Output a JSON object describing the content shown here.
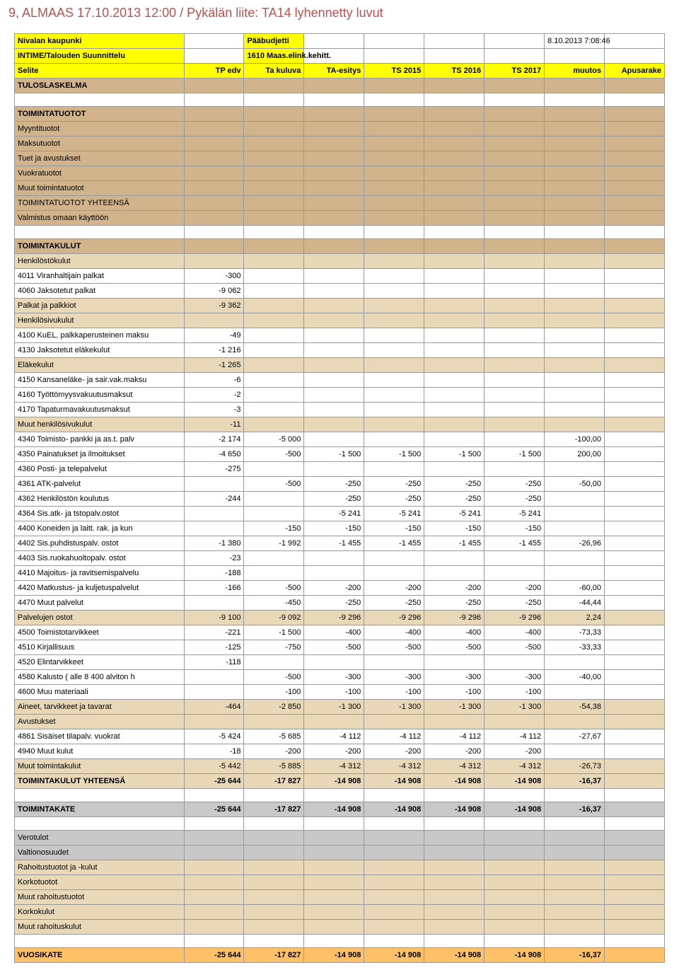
{
  "page_title": "9, ALMAAS 17.10.2013 12:00 / Pykälän liite: TA14 lyhennetty luvut",
  "header": {
    "org": "Nivalan kaupunki",
    "budget": "Pääbudjetti",
    "timestamp": "8.10.2013 7:08:46",
    "unit": "INTIME/Talouden Suunnittelu",
    "context": "1610 Maas.elink.kehitt."
  },
  "cols": [
    "Selite",
    "TP edv",
    "Ta kuluva",
    "TA-esitys",
    "TS 2015",
    "TS 2016",
    "TS 2017",
    "muutos",
    "Apusarake"
  ],
  "section_labels": {
    "tuloslaskelma": "TULOSLASKELMA",
    "toimintatuotot": "TOIMINTATUOTOT",
    "toimintakulut": "TOIMINTAKULUT",
    "vuosikate": "VUOSIKATE"
  },
  "tuotot_rows": [
    "Myyntituotot",
    "Maksutuotot",
    "Tuet ja avustukset",
    "Vuokratuotot",
    "Muut toimintatuotot",
    "TOIMINTATUOTOT YHTEENSÄ",
    "Valmistus omaan käyttöön"
  ],
  "kulut_rows": [
    {
      "l": "Henkilöstökulut",
      "cls": "row-tan"
    },
    {
      "l": "4011 Viranhaltijain palkat",
      "v": [
        "-300",
        "",
        "",
        "",
        "",
        "",
        "",
        ""
      ]
    },
    {
      "l": "4060 Jaksotetut palkat",
      "v": [
        "-9 062",
        "",
        "",
        "",
        "",
        "",
        "",
        ""
      ]
    },
    {
      "l": "Palkat ja palkkiot",
      "v": [
        "-9 362",
        "",
        "",
        "",
        "",
        "",
        "",
        ""
      ],
      "cls": "row-tan"
    },
    {
      "l": "Henkilösivukulut",
      "cls": "row-tan"
    },
    {
      "l": "4100 KuEL, palkkaperusteinen maksu",
      "v": [
        "-49",
        "",
        "",
        "",
        "",
        "",
        "",
        ""
      ]
    },
    {
      "l": "4130 Jaksotetut eläkekulut",
      "v": [
        "-1 216",
        "",
        "",
        "",
        "",
        "",
        "",
        ""
      ]
    },
    {
      "l": "Eläkekulut",
      "v": [
        "-1 265",
        "",
        "",
        "",
        "",
        "",
        "",
        ""
      ],
      "cls": "row-tan"
    },
    {
      "l": "4150 Kansaneläke- ja sair.vak.maksu",
      "v": [
        "-6",
        "",
        "",
        "",
        "",
        "",
        "",
        ""
      ]
    },
    {
      "l": "4160 Työttömyysvakuutusmaksut",
      "v": [
        "-2",
        "",
        "",
        "",
        "",
        "",
        "",
        ""
      ]
    },
    {
      "l": "4170 Tapaturmavakuutusmaksut",
      "v": [
        "-3",
        "",
        "",
        "",
        "",
        "",
        "",
        ""
      ]
    },
    {
      "l": "Muut henkilösivukulut",
      "v": [
        "-11",
        "",
        "",
        "",
        "",
        "",
        "",
        ""
      ],
      "cls": "row-tan"
    },
    {
      "l": "4340 Toimisto- pankki ja as.t. palv",
      "v": [
        "-2 174",
        "-5 000",
        "",
        "",
        "",
        "",
        "-100,00",
        ""
      ]
    },
    {
      "l": "4350 Painatukset ja ilmoitukset",
      "v": [
        "-4 650",
        "-500",
        "-1 500",
        "-1 500",
        "-1 500",
        "-1 500",
        "200,00",
        ""
      ]
    },
    {
      "l": "4360 Posti- ja telepalvelut",
      "v": [
        "-275",
        "",
        "",
        "",
        "",
        "",
        "",
        ""
      ]
    },
    {
      "l": "4361 ATK-palvelut",
      "v": [
        "",
        "-500",
        "-250",
        "-250",
        "-250",
        "-250",
        "-50,00",
        ""
      ]
    },
    {
      "l": "4362 Henkilöstön koulutus",
      "v": [
        "-244",
        "",
        "-250",
        "-250",
        "-250",
        "-250",
        "",
        ""
      ]
    },
    {
      "l": "4364 Sis.atk- ja tstopalv.ostot",
      "v": [
        "",
        "",
        "-5 241",
        "-5 241",
        "-5 241",
        "-5 241",
        "",
        ""
      ]
    },
    {
      "l": "4400 Koneiden ja laitt. rak. ja kun",
      "v": [
        "",
        "-150",
        "-150",
        "-150",
        "-150",
        "-150",
        "",
        ""
      ]
    },
    {
      "l": "4402 Sis.puhdistuspalv. ostot",
      "v": [
        "-1 380",
        "-1 992",
        "-1 455",
        "-1 455",
        "-1 455",
        "-1 455",
        "-26,96",
        ""
      ]
    },
    {
      "l": "4403 Sis.ruokahuoltopalv. ostot",
      "v": [
        "-23",
        "",
        "",
        "",
        "",
        "",
        "",
        ""
      ]
    },
    {
      "l": "4410 Majoitus- ja ravitsemispalvelu",
      "v": [
        "-188",
        "",
        "",
        "",
        "",
        "",
        "",
        ""
      ]
    },
    {
      "l": "4420 Matkustus- ja kuljetuspalvelut",
      "v": [
        "-166",
        "-500",
        "-200",
        "-200",
        "-200",
        "-200",
        "-60,00",
        ""
      ]
    },
    {
      "l": "4470 Muut palvelut",
      "v": [
        "",
        "-450",
        "-250",
        "-250",
        "-250",
        "-250",
        "-44,44",
        ""
      ]
    },
    {
      "l": "Palvelujen ostot",
      "v": [
        "-9 100",
        "-9 092",
        "-9 296",
        "-9 296",
        "-9 296",
        "-9 296",
        "2,24",
        ""
      ],
      "cls": "row-tan"
    },
    {
      "l": "4500 Toimistotarvikkeet",
      "v": [
        "-221",
        "-1 500",
        "-400",
        "-400",
        "-400",
        "-400",
        "-73,33",
        ""
      ]
    },
    {
      "l": "4510 Kirjallisuus",
      "v": [
        "-125",
        "-750",
        "-500",
        "-500",
        "-500",
        "-500",
        "-33,33",
        ""
      ]
    },
    {
      "l": "4520 Elintarvikkeet",
      "v": [
        "-118",
        "",
        "",
        "",
        "",
        "",
        "",
        ""
      ]
    },
    {
      "l": "4580 Kalusto ( alle 8 400 alviton h",
      "v": [
        "",
        "-500",
        "-300",
        "-300",
        "-300",
        "-300",
        "-40,00",
        ""
      ]
    },
    {
      "l": "4600 Muu materiaali",
      "v": [
        "",
        "-100",
        "-100",
        "-100",
        "-100",
        "-100",
        "",
        ""
      ]
    },
    {
      "l": "Aineet, tarvikkeet ja tavarat",
      "v": [
        "-464",
        "-2 850",
        "-1 300",
        "-1 300",
        "-1 300",
        "-1 300",
        "-54,38",
        ""
      ],
      "cls": "row-tan"
    },
    {
      "l": "Avustukset",
      "cls": "row-tan"
    },
    {
      "l": "4861 Sisäiset tilapalv. vuokrat",
      "v": [
        "-5 424",
        "-5 685",
        "-4 112",
        "-4 112",
        "-4 112",
        "-4 112",
        "-27,67",
        ""
      ]
    },
    {
      "l": "4940 Muut kulut",
      "v": [
        "-18",
        "-200",
        "-200",
        "-200",
        "-200",
        "-200",
        "",
        ""
      ]
    },
    {
      "l": "Muut toimintakulut",
      "v": [
        "-5 442",
        "-5 885",
        "-4 312",
        "-4 312",
        "-4 312",
        "-4 312",
        "-26,73",
        ""
      ],
      "cls": "row-tan"
    },
    {
      "l": "TOIMINTAKULUT YHTEENSÄ",
      "v": [
        "-25 644",
        "-17 827",
        "-14 908",
        "-14 908",
        "-14 908",
        "-14 908",
        "-16,37",
        ""
      ],
      "cls": "row-tan bold"
    }
  ],
  "toimintakate": {
    "l": "TOIMINTAKATE",
    "v": [
      "-25 644",
      "-17 827",
      "-14 908",
      "-14 908",
      "-14 908",
      "-14 908",
      "-16,37",
      ""
    ]
  },
  "footer_rows": [
    {
      "l": "Verotulot",
      "cls": "row-grey"
    },
    {
      "l": "Valtionosuudet",
      "cls": "row-grey"
    },
    {
      "l": "Rahoitustuotot ja -kulut",
      "cls": "row-tan"
    },
    {
      "l": "Korkotuotot",
      "cls": "row-tan"
    },
    {
      "l": "Muut rahoitustuotot",
      "cls": "row-tan"
    },
    {
      "l": "Korkokulut",
      "cls": "row-tan"
    },
    {
      "l": "Muut rahoituskulut",
      "cls": "row-tan"
    }
  ],
  "vuosikate": {
    "v": [
      "-25 644",
      "-17 827",
      "-14 908",
      "-14 908",
      "-14 908",
      "-14 908",
      "-16,37",
      ""
    ]
  }
}
